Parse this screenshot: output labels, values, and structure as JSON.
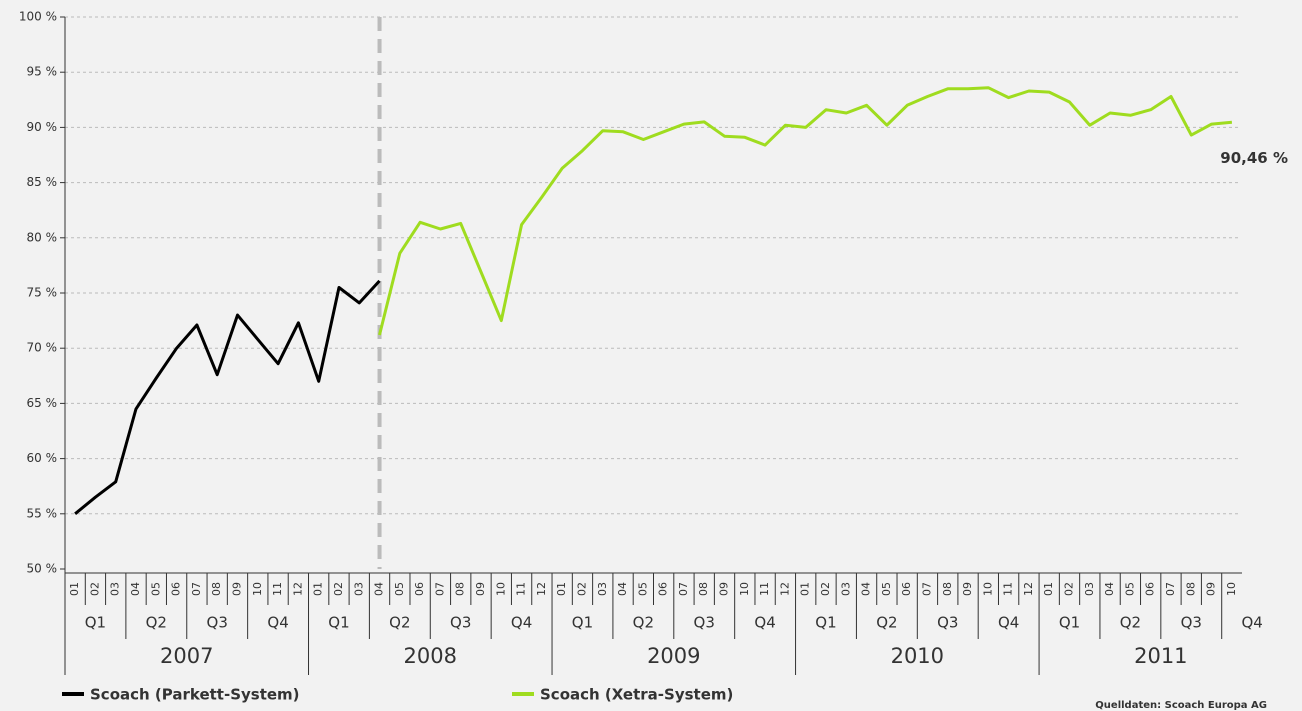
{
  "chart_data": {
    "type": "line",
    "categories": [
      "01",
      "02",
      "03",
      "04",
      "05",
      "06",
      "07",
      "08",
      "09",
      "10",
      "11",
      "12",
      "01",
      "02",
      "03",
      "04",
      "05",
      "06",
      "07",
      "08",
      "09",
      "10",
      "11",
      "12",
      "01",
      "02",
      "03",
      "04",
      "05",
      "06",
      "07",
      "08",
      "09",
      "10",
      "11",
      "12",
      "01",
      "02",
      "03",
      "04",
      "05",
      "06",
      "07",
      "08",
      "09",
      "10",
      "11",
      "12",
      "01",
      "02",
      "03",
      "04",
      "05",
      "06",
      "07",
      "08",
      "09",
      "10"
    ],
    "quarters": [
      "Q1",
      "Q2",
      "Q3",
      "Q4",
      "Q1",
      "Q2",
      "Q3",
      "Q4",
      "Q1",
      "Q2",
      "Q3",
      "Q4",
      "Q1",
      "Q2",
      "Q3",
      "Q4",
      "Q1",
      "Q2",
      "Q3",
      "Q4"
    ],
    "years": [
      "2007",
      "2008",
      "2009",
      "2010",
      "2011"
    ],
    "series": [
      {
        "name": "Scoach (Parkett-System)",
        "color": "#000000",
        "values": [
          55.0,
          56.5,
          57.9,
          64.5,
          67.3,
          70.0,
          72.1,
          67.6,
          73.0,
          70.8,
          68.6,
          72.3,
          67.0,
          75.5,
          74.1,
          76.1,
          null,
          null,
          null,
          null,
          null,
          null,
          null,
          null,
          null,
          null,
          null,
          null,
          null,
          null,
          null,
          null,
          null,
          null,
          null,
          null,
          null,
          null,
          null,
          null,
          null,
          null,
          null,
          null,
          null,
          null,
          null,
          null,
          null,
          null,
          null,
          null,
          null,
          null,
          null,
          null,
          null,
          null
        ]
      },
      {
        "name": "Scoach (Xetra-System)",
        "color": "#9fdc1f",
        "values": [
          null,
          null,
          null,
          null,
          null,
          null,
          null,
          null,
          null,
          null,
          null,
          null,
          null,
          null,
          null,
          71.2,
          78.6,
          81.4,
          80.8,
          81.3,
          76.9,
          72.5,
          81.2,
          83.7,
          86.3,
          87.9,
          89.7,
          89.6,
          88.9,
          89.6,
          90.3,
          90.5,
          89.2,
          89.1,
          88.4,
          90.2,
          90.0,
          91.6,
          91.3,
          92.0,
          90.2,
          92.0,
          92.8,
          93.5,
          93.5,
          93.6,
          92.7,
          93.3,
          93.2,
          92.3,
          90.2,
          91.3,
          91.1,
          91.6,
          92.8,
          89.3,
          90.3,
          90.46
        ],
        "value_labels": [
          null,
          null,
          null,
          null,
          null,
          null,
          null,
          null,
          null,
          null,
          null,
          null,
          null,
          null,
          null,
          null,
          null,
          null,
          null,
          null,
          null,
          null,
          null,
          null,
          null,
          null,
          null,
          null,
          null,
          null,
          null,
          null,
          null,
          null,
          null,
          null,
          null,
          null,
          null,
          null,
          null,
          null,
          null,
          null,
          null,
          null,
          null,
          null,
          null,
          null,
          null,
          null,
          null,
          null,
          null,
          null,
          null,
          "90,46 %"
        ]
      }
    ],
    "ylim": [
      50,
      100
    ],
    "yticks": [
      {
        "value": 50,
        "label": "50 %"
      },
      {
        "value": 55,
        "label": "55 %"
      },
      {
        "value": 60,
        "label": "60 %"
      },
      {
        "value": 65,
        "label": "65 %"
      },
      {
        "value": 70,
        "label": "70 %"
      },
      {
        "value": 75,
        "label": "75 %"
      },
      {
        "value": 80,
        "label": "80 %"
      },
      {
        "value": 85,
        "label": "85 %"
      },
      {
        "value": 90,
        "label": "90 %"
      },
      {
        "value": 95,
        "label": "95 %"
      },
      {
        "value": 100,
        "label": "100 %"
      }
    ],
    "grid": true,
    "source": "Quelldaten: Scoach Europa AG"
  }
}
